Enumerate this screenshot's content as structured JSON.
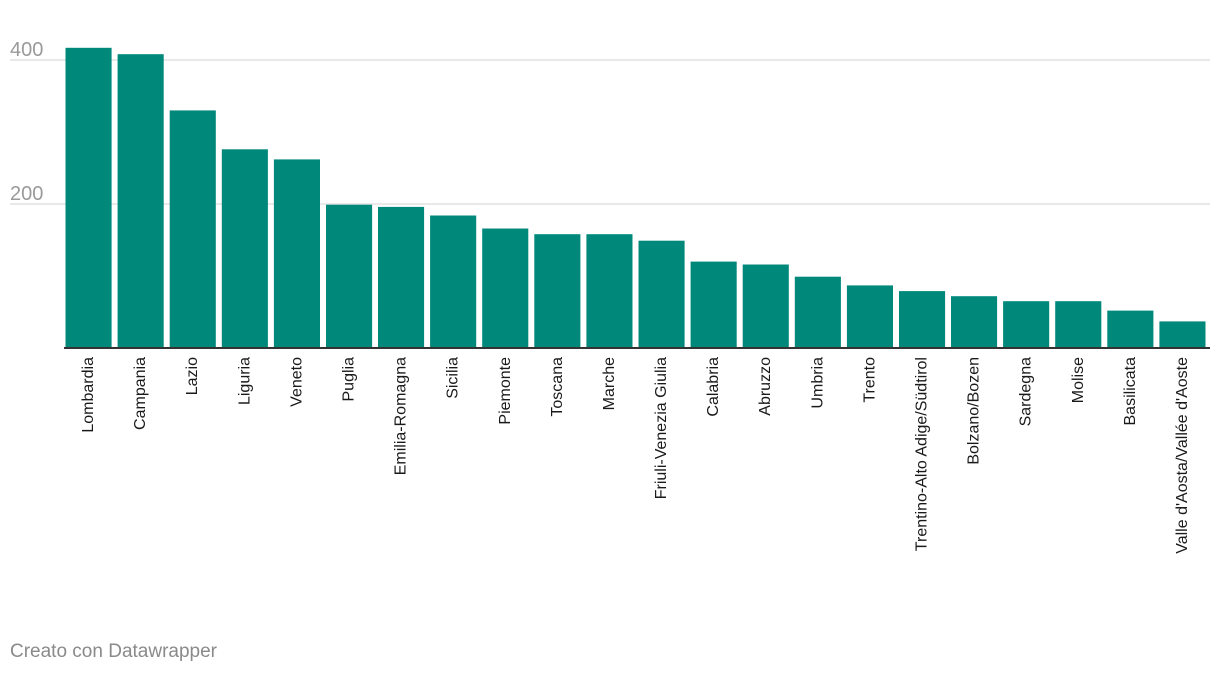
{
  "chart_data": {
    "type": "bar",
    "title": "",
    "xlabel": "",
    "ylabel": "",
    "ylim": [
      0,
      420
    ],
    "yticks": [
      200,
      400
    ],
    "grid": true,
    "bar_color": "#00897b",
    "categories": [
      "Lombardia",
      "Campania",
      "Lazio",
      "Liguria",
      "Veneto",
      "Puglia",
      "Emilia-Romagna",
      "Sicilia",
      "Piemonte",
      "Toscana",
      "Marche",
      "Friuli-Venezia Giulia",
      "Calabria",
      "Abruzzo",
      "Umbria",
      "Trento",
      "Trentino-Alto Adige/Südtirol",
      "Bolzano/Bozen",
      "Sardegna",
      "Molise",
      "Basilicata",
      "Valle d'Aosta/Vallée d'Aoste"
    ],
    "values": [
      417,
      408,
      330,
      276,
      262,
      199,
      196,
      184,
      166,
      158,
      158,
      149,
      120,
      116,
      99,
      87,
      79,
      72,
      65,
      65,
      52,
      37
    ]
  },
  "footer": {
    "credit": "Creato con Datawrapper"
  }
}
